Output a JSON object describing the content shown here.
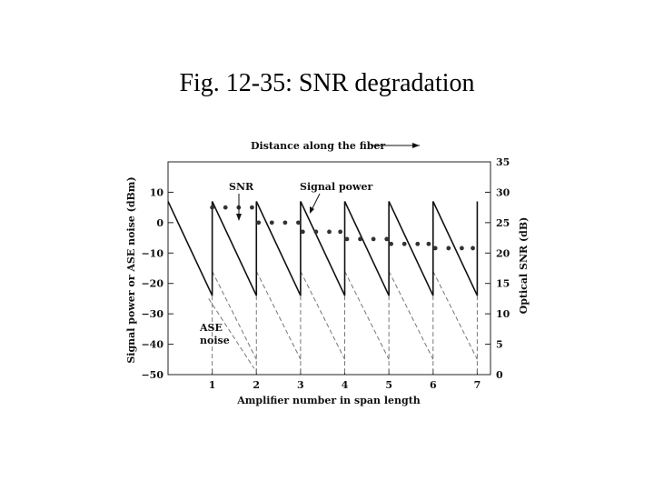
{
  "slide": {
    "title": "Fig. 12-35: SNR degradation"
  },
  "chart_data": {
    "type": "line",
    "top_caption": "Distance along the fiber",
    "xlabel": "Amplifier number in span length",
    "ylabel_left": "Signal power or ASE noise (dBm)",
    "ylabel_right": "Optical SNR (dB)",
    "x_ticks": [
      1,
      2,
      3,
      4,
      5,
      6,
      7
    ],
    "xlim": [
      0,
      7.3
    ],
    "ylim_left": [
      -50,
      20
    ],
    "ylim_right": [
      0,
      35
    ],
    "y_ticks_left": [
      10,
      0,
      -10,
      -20,
      -30,
      -40,
      -50
    ],
    "y_ticks_right": [
      35,
      30,
      25,
      20,
      15,
      10,
      5,
      0
    ],
    "annotations": {
      "snr": "SNR",
      "signal": "Signal power",
      "ase": "ASE",
      "ase2": "noise"
    },
    "signal_power": {
      "peak_dbm": 7,
      "trough_dbm": -24,
      "start": [
        0,
        7
      ]
    },
    "ase_noise": {
      "start_dbm": -16,
      "end_dbm": -45
    },
    "snr_points": [
      {
        "x": 1.0,
        "y": 27.5
      },
      {
        "x": 1.3,
        "y": 27.5
      },
      {
        "x": 1.6,
        "y": 27.5
      },
      {
        "x": 1.9,
        "y": 27.5
      },
      {
        "x": 2.05,
        "y": 25.0
      },
      {
        "x": 2.35,
        "y": 25.0
      },
      {
        "x": 2.65,
        "y": 25.0
      },
      {
        "x": 2.95,
        "y": 25.0
      },
      {
        "x": 3.05,
        "y": 23.5
      },
      {
        "x": 3.35,
        "y": 23.5
      },
      {
        "x": 3.65,
        "y": 23.5
      },
      {
        "x": 3.9,
        "y": 23.5
      },
      {
        "x": 4.05,
        "y": 22.3
      },
      {
        "x": 4.35,
        "y": 22.3
      },
      {
        "x": 4.65,
        "y": 22.3
      },
      {
        "x": 4.95,
        "y": 22.3
      },
      {
        "x": 5.05,
        "y": 21.5
      },
      {
        "x": 5.35,
        "y": 21.5
      },
      {
        "x": 5.65,
        "y": 21.5
      },
      {
        "x": 5.9,
        "y": 21.5
      },
      {
        "x": 6.05,
        "y": 20.8
      },
      {
        "x": 6.35,
        "y": 20.8
      },
      {
        "x": 6.65,
        "y": 20.8
      },
      {
        "x": 6.9,
        "y": 20.8
      }
    ]
  }
}
